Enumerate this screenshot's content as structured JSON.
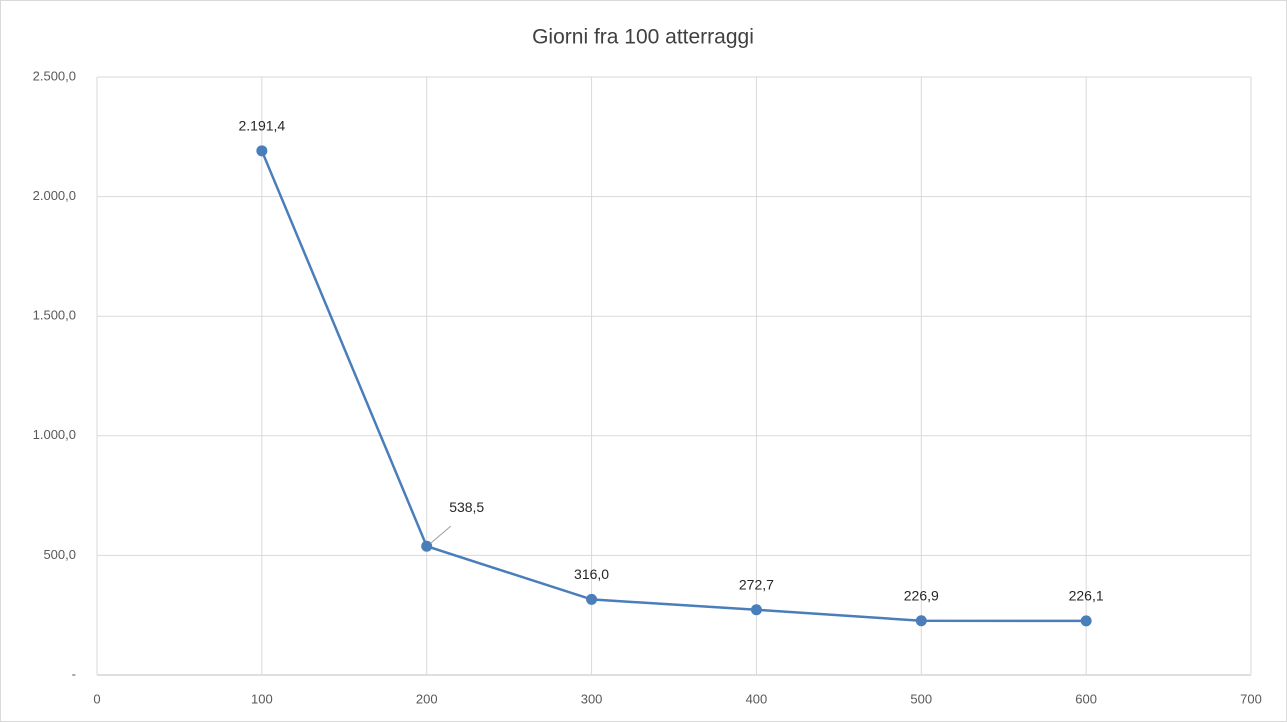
{
  "chart_data": {
    "type": "line",
    "title": "Giorni fra 100 atterraggi",
    "x": [
      100,
      200,
      300,
      400,
      500,
      600
    ],
    "values": [
      2191.4,
      538.5,
      316.0,
      272.7,
      226.9,
      226.1
    ],
    "value_labels": [
      "2.191,4",
      "538,5",
      "316,0",
      "272,7",
      "226,9",
      "226,1"
    ],
    "color": "#4a7ebb",
    "xlim": [
      0,
      700
    ],
    "xticks": [
      0,
      100,
      200,
      300,
      400,
      500,
      600,
      700
    ],
    "ylim": [
      0,
      2500
    ],
    "yticks": [
      {
        "value": 0,
        "label": "-"
      },
      {
        "value": 500,
        "label": "500,0"
      },
      {
        "value": 1000,
        "label": "1.000,0"
      },
      {
        "value": 1500,
        "label": "1.500,0"
      },
      {
        "value": 2000,
        "label": "2.000,0"
      },
      {
        "value": 2500,
        "label": "2.500,0"
      }
    ],
    "grid": true
  }
}
